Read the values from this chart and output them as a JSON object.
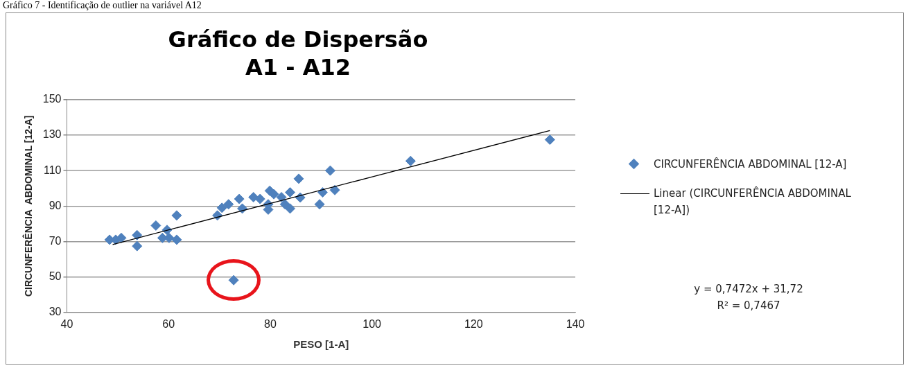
{
  "chart_data": {
    "type": "scatter",
    "title": "Gráfico de Dispersão",
    "subtitle": "A1 - A12",
    "xlabel": "PESO [1-A]",
    "ylabel": "CIRCUNFERÊNCIA  ABDOMINAL [12-A]",
    "annotations": [
      "Gráfico 7 - Identificação de outlier na variável A12",
      "y = 0,7472x + 31,72\nR² = 0,7467"
    ],
    "xlim": [
      40,
      140
    ],
    "xticks": [
      40,
      60,
      80,
      100,
      120,
      140
    ],
    "ylim": [
      30,
      150
    ],
    "yticks": [
      30,
      50,
      70,
      90,
      110,
      130,
      150
    ],
    "grid": "y",
    "legend": "right",
    "marker": "diamond",
    "series": [
      {
        "name": "CIRCUNFERÊNCIA ABDOMINAL [12-A]",
        "color": "#4f81bd",
        "x": [
          48.4,
          49.6,
          50.7,
          53.8,
          53.8,
          57.5,
          58.8,
          59.7,
          60.1,
          61.6,
          61.6,
          69.6,
          70.5,
          71.8,
          73.7,
          73.9,
          74.5,
          76.7,
          78,
          79.6,
          79.6,
          79.9,
          80.7,
          82.2,
          82.9,
          83.9,
          83.9,
          85.6,
          85.9,
          89.7,
          90.3,
          91.8,
          92.7,
          107.6,
          135,
          72.8
        ],
        "values": [
          71,
          71,
          72,
          73.6,
          67.4,
          79,
          72,
          76.5,
          72,
          84.7,
          71,
          84.7,
          89,
          91,
          null,
          94,
          88.6,
          95,
          94,
          91,
          88,
          98.6,
          96.7,
          95,
          91,
          97.7,
          88.6,
          105.4,
          94.8,
          91,
          97.7,
          110,
          99,
          115.4,
          127.4,
          48.2
        ]
      },
      {
        "name": "Linear (CIRCUNFERÊNCIA ABDOMINAL [12-A])",
        "type": "line",
        "color": "#000000",
        "marker": "none",
        "line_style": "solid",
        "x": [
          49,
          135
        ],
        "values": [
          68.3,
          132.6
        ]
      }
    ]
  }
}
